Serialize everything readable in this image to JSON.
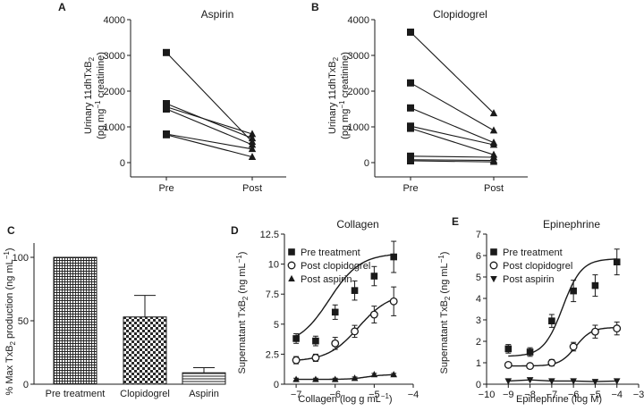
{
  "chart_data": [
    {
      "panel": "A",
      "type": "line",
      "title": "Aspirin",
      "ylabel": "Urinary 11dhTxB2 (pg mg⁻¹ creatinine)",
      "xlabel": "",
      "categories": [
        "Pre",
        "Post"
      ],
      "ylim": [
        0,
        4000
      ],
      "yticks": [
        0,
        1000,
        2000,
        3000,
        4000
      ],
      "markers": {
        "Pre": "square",
        "Post": "triangle"
      },
      "pairs": [
        {
          "pre": 3080,
          "post": 580
        },
        {
          "pre": 1650,
          "post": 680
        },
        {
          "pre": 1560,
          "post": 800
        },
        {
          "pre": 1500,
          "post": 500
        },
        {
          "pre": 800,
          "post": 380
        },
        {
          "pre": 780,
          "post": 160
        }
      ]
    },
    {
      "panel": "B",
      "type": "line",
      "title": "Clopidogrel",
      "ylabel": "Urinary 11dhTxB2 (pg mg⁻¹ creatinine)",
      "xlabel": "",
      "categories": [
        "Pre",
        "Post"
      ],
      "ylim": [
        0,
        4000
      ],
      "yticks": [
        0,
        1000,
        2000,
        3000,
        4000
      ],
      "markers": {
        "Pre": "square",
        "Post": "triangle"
      },
      "pairs": [
        {
          "pre": 3650,
          "post": 1380
        },
        {
          "pre": 2230,
          "post": 900
        },
        {
          "pre": 1530,
          "post": 560
        },
        {
          "pre": 1020,
          "post": 500
        },
        {
          "pre": 960,
          "post": 220
        },
        {
          "pre": 180,
          "post": 150
        },
        {
          "pre": 80,
          "post": 60
        },
        {
          "pre": 50,
          "post": 20
        }
      ]
    },
    {
      "panel": "C",
      "type": "bar",
      "title": "",
      "ylabel": "% Max TxB2 production (ng mL⁻¹)",
      "xlabel": "",
      "categories": [
        "Pre treatment",
        "Clopidogrel",
        "Aspirin"
      ],
      "values": [
        100,
        53,
        9
      ],
      "errors": [
        0,
        17,
        4
      ],
      "fills": [
        "dense-grid",
        "checker",
        "hlines"
      ],
      "ylim": [
        0,
        110
      ],
      "yticks": [
        0,
        50,
        100
      ]
    },
    {
      "panel": "D",
      "type": "line",
      "title": "Collagen",
      "xlabel": "Collagen (log g mL⁻¹)",
      "ylabel": "Supernatant TxB2 (ng mL⁻¹)",
      "xlim": [
        -7.3,
        -4
      ],
      "ylim": [
        0,
        12.5
      ],
      "xticks": [
        -7,
        -6,
        -5,
        -4
      ],
      "yticks": [
        0,
        2.5,
        5,
        7.5,
        10,
        12.5
      ],
      "legend": "top-left",
      "series": [
        {
          "name": "Pre treatment",
          "marker": "square",
          "x": [
            -7,
            -6.5,
            -6,
            -5.5,
            -5,
            -4.5
          ],
          "y": [
            3.8,
            3.6,
            6.0,
            7.8,
            9.0,
            10.6
          ],
          "err": [
            0.4,
            0.4,
            0.6,
            0.8,
            0.8,
            1.3
          ],
          "curve": [
            3.2,
            10.9,
            6.15,
            1.1
          ]
        },
        {
          "name": "Post clopidogrel",
          "marker": "circle",
          "x": [
            -7,
            -6.5,
            -6,
            -5.5,
            -5,
            -4.5
          ],
          "y": [
            2.0,
            2.2,
            3.4,
            4.4,
            5.8,
            6.9
          ],
          "err": [
            0.3,
            0.3,
            0.5,
            0.5,
            0.7,
            1.2
          ],
          "curve": [
            1.9,
            7.6,
            5.4,
            1.1
          ]
        },
        {
          "name": "Post aspirin",
          "marker": "triangle",
          "x": [
            -7,
            -6.5,
            -6,
            -5.5,
            -5,
            -4.5
          ],
          "y": [
            0.4,
            0.4,
            0.4,
            0.5,
            0.8,
            0.8
          ],
          "err": [
            0.1,
            0.1,
            0.1,
            0.1,
            0.1,
            0.1
          ],
          "curve": [
            0.4,
            0.8,
            5.2,
            2.0
          ]
        }
      ]
    },
    {
      "panel": "E",
      "type": "line",
      "title": "Epinephrine",
      "xlabel": "Epinephrine (log M)",
      "ylabel": "Supernatant TxB2 (ng mL⁻¹)",
      "xlim": [
        -10,
        -3
      ],
      "ylim": [
        0,
        7
      ],
      "xticks": [
        -10,
        -9,
        -8,
        -7,
        -6,
        -5,
        -4,
        -3
      ],
      "yticks": [
        0,
        1,
        2,
        3,
        4,
        5,
        6,
        7
      ],
      "legend": "top-left",
      "series": [
        {
          "name": "Pre treatment",
          "marker": "square",
          "x": [
            -9,
            -8,
            -7,
            -6,
            -5,
            -4
          ],
          "y": [
            1.65,
            1.5,
            2.95,
            4.35,
            4.6,
            5.7
          ],
          "err": [
            0.2,
            0.2,
            0.3,
            0.5,
            0.5,
            0.6
          ],
          "curve": [
            1.3,
            5.85,
            6.5,
            1.0
          ]
        },
        {
          "name": "Post clopidogrel",
          "marker": "circle",
          "x": [
            -9,
            -8,
            -7,
            -6,
            -5,
            -4
          ],
          "y": [
            0.9,
            0.85,
            1.0,
            1.75,
            2.45,
            2.6
          ],
          "err": [
            0.05,
            0.05,
            0.15,
            0.2,
            0.3,
            0.3
          ],
          "curve": [
            0.85,
            2.65,
            5.9,
            1.2
          ]
        },
        {
          "name": "Post aspirin",
          "marker": "tri-down",
          "x": [
            -9,
            -8,
            -7,
            -6,
            -5,
            -4
          ],
          "y": [
            0.15,
            0.2,
            0.15,
            0.15,
            0.12,
            0.15
          ],
          "err": [
            0.02,
            0.02,
            0.02,
            0.02,
            0.02,
            0.02
          ],
          "curve": null
        }
      ]
    }
  ]
}
